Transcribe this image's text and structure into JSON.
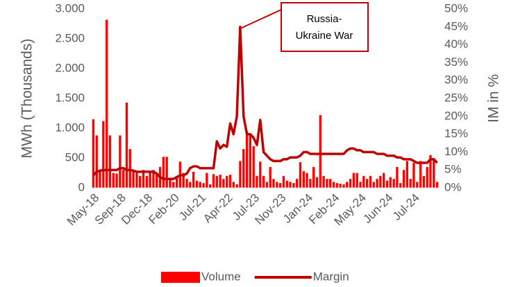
{
  "chart_data": {
    "type": "bar_line",
    "categories": [
      "May-18",
      null,
      null,
      null,
      null,
      null,
      null,
      null,
      "Sep-18",
      null,
      null,
      null,
      null,
      null,
      null,
      null,
      "Dec-18",
      null,
      null,
      null,
      null,
      null,
      null,
      null,
      "Feb-20",
      null,
      null,
      null,
      null,
      null,
      null,
      null,
      "Jul-21",
      null,
      null,
      null,
      null,
      null,
      null,
      null,
      "Apr-22",
      null,
      null,
      null,
      null,
      null,
      null,
      null,
      "Jul-23",
      null,
      null,
      null,
      null,
      null,
      null,
      null,
      "Nov-23",
      null,
      null,
      null,
      null,
      null,
      null,
      null,
      "Jan-24",
      null,
      null,
      null,
      null,
      null,
      null,
      null,
      "Feb-24",
      null,
      null,
      null,
      null,
      null,
      null,
      null,
      "May-24",
      null,
      null,
      null,
      null,
      null,
      null,
      null,
      "Jun-24",
      null,
      null,
      null,
      null,
      null,
      null,
      null,
      "Jul-24",
      null,
      null,
      null,
      null,
      null,
      null,
      null
    ],
    "series": [
      {
        "name": "Volume",
        "type": "bar",
        "color": "#ff0000",
        "values": [
          1150,
          880,
          300,
          1120,
          2820,
          880,
          250,
          240,
          880,
          300,
          1430,
          650,
          300,
          250,
          200,
          300,
          200,
          250,
          300,
          250,
          350,
          520,
          520,
          150,
          100,
          200,
          440,
          250,
          150,
          100,
          270,
          120,
          100,
          80,
          250,
          60,
          230,
          200,
          220,
          150,
          200,
          220,
          100,
          60,
          450,
          650,
          950,
          900,
          700,
          200,
          440,
          200,
          100,
          350,
          150,
          100,
          80,
          200,
          120,
          100,
          80,
          150,
          430,
          280,
          250,
          150,
          350,
          180,
          1220,
          200,
          150,
          150,
          100,
          80,
          70,
          60,
          100,
          150,
          250,
          250,
          100,
          200,
          150,
          200,
          100,
          150,
          200,
          250,
          120,
          180,
          150,
          350,
          80,
          300,
          450,
          150,
          420,
          100,
          450,
          200,
          350,
          550,
          500,
          100
        ]
      },
      {
        "name": "Margin",
        "type": "line",
        "axis": "y2",
        "color": "#c00000",
        "values": [
          3.5,
          4.5,
          4.8,
          5,
          5,
          5,
          5,
          5,
          5.5,
          5.5,
          5,
          5,
          4.8,
          4.5,
          4.5,
          4.5,
          4.5,
          4.5,
          4.5,
          4,
          3,
          2.5,
          2.5,
          2.5,
          2.5,
          3,
          3.5,
          3.5,
          4,
          5.5,
          6,
          6,
          5.5,
          5.5,
          5.5,
          5.5,
          5.5,
          13,
          11,
          12,
          11.5,
          18,
          15,
          20,
          45,
          20,
          15,
          15,
          14,
          12,
          19,
          10,
          9,
          8,
          7.5,
          7.5,
          7.5,
          8,
          8,
          8.5,
          8.5,
          8.5,
          9,
          10,
          10,
          9.5,
          9.5,
          9.5,
          9.5,
          9.5,
          9.5,
          9.5,
          9.5,
          9.5,
          9.5,
          9.5,
          10.5,
          11,
          11,
          10.5,
          10.5,
          10,
          10,
          10,
          10,
          9.5,
          9.5,
          9.5,
          9,
          9,
          9,
          8.5,
          8.5,
          8,
          8,
          8,
          7.5,
          7,
          7,
          7,
          7,
          8,
          8,
          7
        ]
      }
    ],
    "y_label": "MWh (Thousands)",
    "y2_label": "IM in %",
    "ylim": [
      0,
      3000
    ],
    "yticks": [
      0,
      500,
      {
        "value": 1000,
        "label": "1.000"
      },
      {
        "value": 1500,
        "label": "1.500"
      },
      {
        "value": 2000,
        "label": "2.000"
      },
      {
        "value": 2500,
        "label": "2.500"
      },
      {
        "value": 3000,
        "label": "3.000"
      }
    ],
    "y2lim": [
      0,
      50
    ],
    "y2ticks": [
      {
        "value": 0,
        "label": "0%"
      },
      {
        "value": 5,
        "label": "5%"
      },
      {
        "value": 10,
        "label": "10%"
      },
      {
        "value": 15,
        "label": "15%"
      },
      {
        "value": 20,
        "label": "20%"
      },
      {
        "value": 25,
        "label": "25%"
      },
      {
        "value": 30,
        "label": "30%"
      },
      {
        "value": 35,
        "label": "35%"
      },
      {
        "value": 40,
        "label": "40%"
      },
      {
        "value": 45,
        "label": "45%"
      },
      {
        "value": 50,
        "label": "50%"
      }
    ],
    "annotation": [
      "Russia-",
      "Ukraine War"
    ],
    "legend": "bottom"
  }
}
